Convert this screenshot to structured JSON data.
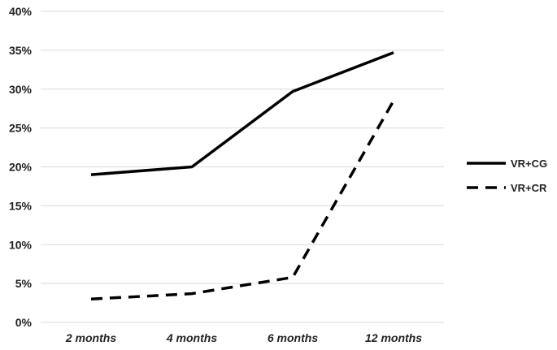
{
  "chart_data": {
    "type": "line",
    "categories": [
      "2 months",
      "4 months",
      "6 months",
      "12 months"
    ],
    "series": [
      {
        "name": "VR+CG",
        "values": [
          19,
          20,
          29.7,
          34.7
        ],
        "color": "#000000",
        "dash": "solid"
      },
      {
        "name": "VR+CR",
        "values": [
          3,
          3.7,
          5.8,
          28.5
        ],
        "color": "#000000",
        "dash": "dashed"
      }
    ],
    "yticks": [
      "0%",
      "5%",
      "10%",
      "15%",
      "20%",
      "25%",
      "30%",
      "35%",
      "40%"
    ],
    "ylim": [
      0,
      40
    ],
    "grid": true,
    "legend_position": "right",
    "title": "",
    "xlabel": "",
    "ylabel": ""
  }
}
